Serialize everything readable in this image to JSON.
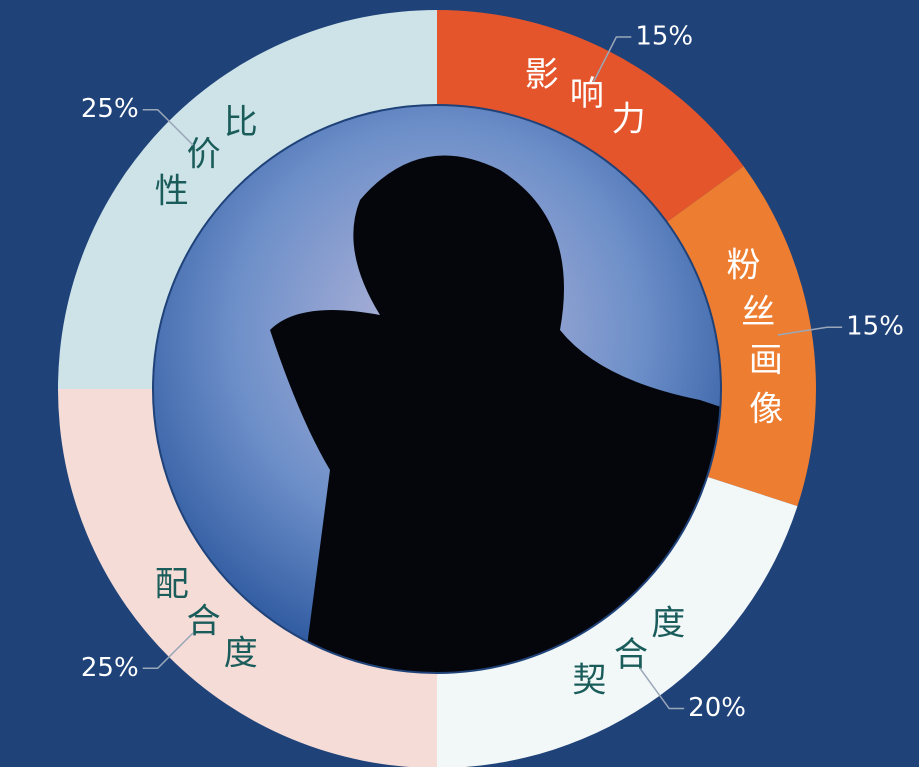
{
  "chart_data": {
    "type": "donut",
    "categories": [
      "影响力",
      "粉丝画像",
      "契合度",
      "配合度",
      "性价比"
    ],
    "values": [
      15,
      15,
      20,
      25,
      25
    ],
    "value_labels": [
      "15%",
      "15%",
      "20%",
      "25%",
      "25%"
    ],
    "colors": [
      "#e4552c",
      "#ed7d31",
      "#f2f7f8",
      "#f5dcd7",
      "#cde3e8"
    ]
  }
}
